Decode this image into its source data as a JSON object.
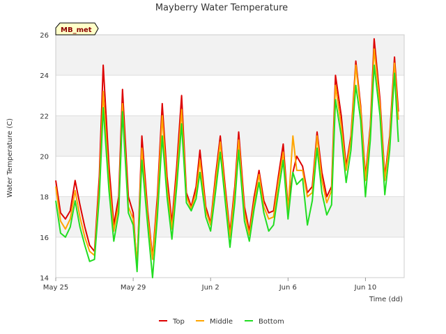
{
  "chart_data": {
    "type": "line",
    "title": "Mayberry Water Temperature",
    "xlabel": "Time (dd)",
    "ylabel": "Water Temperature (C)",
    "badge": "MB_met",
    "ylim": [
      14,
      26
    ],
    "xlim": [
      "2000-05-25",
      "2000-06-12"
    ],
    "yticks": [
      "14",
      "16",
      "18",
      "20",
      "22",
      "24",
      "26"
    ],
    "xticks": [
      {
        "label": "May 25",
        "day": 0
      },
      {
        "label": "May 29",
        "day": 4
      },
      {
        "label": "Jun 2",
        "day": 8
      },
      {
        "label": "Jun 6",
        "day": 12
      },
      {
        "label": "Jun 10",
        "day": 16
      }
    ],
    "grid": true,
    "legend_position": "bottom",
    "series": [
      {
        "name": "Top",
        "color": "#dd0000",
        "points": [
          [
            0.0,
            18.8
          ],
          [
            0.25,
            17.2
          ],
          [
            0.5,
            16.9
          ],
          [
            0.75,
            17.3
          ],
          [
            1.0,
            18.8
          ],
          [
            1.25,
            17.6
          ],
          [
            1.5,
            16.5
          ],
          [
            1.75,
            15.6
          ],
          [
            2.0,
            15.3
          ],
          [
            2.25,
            19.0
          ],
          [
            2.45,
            24.5
          ],
          [
            2.75,
            19.5
          ],
          [
            3.0,
            16.6
          ],
          [
            3.25,
            18.0
          ],
          [
            3.45,
            23.3
          ],
          [
            3.75,
            18.0
          ],
          [
            4.0,
            17.2
          ],
          [
            4.2,
            14.5
          ],
          [
            4.45,
            21.0
          ],
          [
            4.75,
            17.3
          ],
          [
            5.0,
            15.0
          ],
          [
            5.25,
            18.0
          ],
          [
            5.5,
            22.6
          ],
          [
            5.75,
            19.0
          ],
          [
            6.0,
            16.7
          ],
          [
            6.25,
            19.5
          ],
          [
            6.5,
            23.0
          ],
          [
            6.75,
            18.2
          ],
          [
            7.0,
            17.5
          ],
          [
            7.25,
            18.5
          ],
          [
            7.45,
            20.3
          ],
          [
            7.75,
            17.5
          ],
          [
            8.0,
            16.7
          ],
          [
            8.25,
            19.0
          ],
          [
            8.5,
            21.0
          ],
          [
            8.75,
            18.5
          ],
          [
            9.0,
            16.2
          ],
          [
            9.25,
            18.5
          ],
          [
            9.45,
            21.2
          ],
          [
            9.75,
            17.5
          ],
          [
            10.0,
            16.3
          ],
          [
            10.25,
            18.0
          ],
          [
            10.5,
            19.3
          ],
          [
            10.75,
            17.8
          ],
          [
            11.0,
            17.2
          ],
          [
            11.25,
            17.3
          ],
          [
            11.5,
            19.0
          ],
          [
            11.75,
            20.6
          ],
          [
            12.0,
            17.5
          ],
          [
            12.25,
            19.2
          ],
          [
            12.45,
            20.0
          ],
          [
            12.75,
            19.5
          ],
          [
            13.0,
            18.2
          ],
          [
            13.25,
            18.5
          ],
          [
            13.5,
            21.2
          ],
          [
            13.75,
            19.2
          ],
          [
            14.0,
            18.0
          ],
          [
            14.25,
            18.5
          ],
          [
            14.45,
            24.0
          ],
          [
            14.75,
            22.0
          ],
          [
            15.0,
            19.5
          ],
          [
            15.25,
            21.0
          ],
          [
            15.5,
            24.7
          ],
          [
            15.75,
            22.5
          ],
          [
            16.0,
            19.0
          ],
          [
            16.25,
            21.5
          ],
          [
            16.45,
            25.8
          ],
          [
            16.75,
            22.8
          ],
          [
            17.0,
            19.0
          ],
          [
            17.25,
            21.0
          ],
          [
            17.5,
            24.9
          ],
          [
            17.7,
            22.2
          ]
        ]
      },
      {
        "name": "Middle",
        "color": "#ffa500",
        "points": [
          [
            0.0,
            18.5
          ],
          [
            0.25,
            16.8
          ],
          [
            0.5,
            16.4
          ],
          [
            0.75,
            16.9
          ],
          [
            1.0,
            18.3
          ],
          [
            1.25,
            17.0
          ],
          [
            1.5,
            16.0
          ],
          [
            1.75,
            15.3
          ],
          [
            2.0,
            15.1
          ],
          [
            2.25,
            18.5
          ],
          [
            2.45,
            23.2
          ],
          [
            2.75,
            18.8
          ],
          [
            3.0,
            16.3
          ],
          [
            3.25,
            17.6
          ],
          [
            3.45,
            22.6
          ],
          [
            3.75,
            17.5
          ],
          [
            4.0,
            16.9
          ],
          [
            4.2,
            14.7
          ],
          [
            4.45,
            20.4
          ],
          [
            4.75,
            17.0
          ],
          [
            5.0,
            14.9
          ],
          [
            5.25,
            17.6
          ],
          [
            5.5,
            22.0
          ],
          [
            5.75,
            18.5
          ],
          [
            6.0,
            16.4
          ],
          [
            6.25,
            19.0
          ],
          [
            6.5,
            22.3
          ],
          [
            6.75,
            18.0
          ],
          [
            7.0,
            17.4
          ],
          [
            7.25,
            18.2
          ],
          [
            7.45,
            19.8
          ],
          [
            7.75,
            17.3
          ],
          [
            8.0,
            16.6
          ],
          [
            8.25,
            18.7
          ],
          [
            8.5,
            20.7
          ],
          [
            8.75,
            18.2
          ],
          [
            9.0,
            16.0
          ],
          [
            9.25,
            18.2
          ],
          [
            9.45,
            20.8
          ],
          [
            9.75,
            17.2
          ],
          [
            10.0,
            16.1
          ],
          [
            10.25,
            17.7
          ],
          [
            10.5,
            19.1
          ],
          [
            10.75,
            17.5
          ],
          [
            11.0,
            16.9
          ],
          [
            11.25,
            17.0
          ],
          [
            11.5,
            18.7
          ],
          [
            11.75,
            20.2
          ],
          [
            12.0,
            17.3
          ],
          [
            12.25,
            21.0
          ],
          [
            12.45,
            19.3
          ],
          [
            12.75,
            19.3
          ],
          [
            13.0,
            18.0
          ],
          [
            13.25,
            18.2
          ],
          [
            13.5,
            21.0
          ],
          [
            13.75,
            18.8
          ],
          [
            14.0,
            17.7
          ],
          [
            14.25,
            18.3
          ],
          [
            14.45,
            23.5
          ],
          [
            14.75,
            21.5
          ],
          [
            15.0,
            19.3
          ],
          [
            15.25,
            20.8
          ],
          [
            15.5,
            24.5
          ],
          [
            15.75,
            22.3
          ],
          [
            16.0,
            18.8
          ],
          [
            16.25,
            21.3
          ],
          [
            16.45,
            25.3
          ],
          [
            16.75,
            22.5
          ],
          [
            17.0,
            18.8
          ],
          [
            17.25,
            20.8
          ],
          [
            17.5,
            24.6
          ],
          [
            17.7,
            21.8
          ]
        ]
      },
      {
        "name": "Bottom",
        "color": "#22dd22",
        "points": [
          [
            0.0,
            17.8
          ],
          [
            0.25,
            16.2
          ],
          [
            0.5,
            16.0
          ],
          [
            0.75,
            16.5
          ],
          [
            1.0,
            17.8
          ],
          [
            1.25,
            16.5
          ],
          [
            1.5,
            15.6
          ],
          [
            1.75,
            14.8
          ],
          [
            2.0,
            14.9
          ],
          [
            2.25,
            18.0
          ],
          [
            2.45,
            22.4
          ],
          [
            2.75,
            18.3
          ],
          [
            3.0,
            15.8
          ],
          [
            3.25,
            17.2
          ],
          [
            3.45,
            22.2
          ],
          [
            3.75,
            17.2
          ],
          [
            4.0,
            16.6
          ],
          [
            4.2,
            14.3
          ],
          [
            4.45,
            19.8
          ],
          [
            4.75,
            16.6
          ],
          [
            5.0,
            14.0
          ],
          [
            5.25,
            17.0
          ],
          [
            5.5,
            21.0
          ],
          [
            5.75,
            18.0
          ],
          [
            6.0,
            15.9
          ],
          [
            6.25,
            18.5
          ],
          [
            6.5,
            21.6
          ],
          [
            6.75,
            17.7
          ],
          [
            7.0,
            17.3
          ],
          [
            7.25,
            17.9
          ],
          [
            7.45,
            19.2
          ],
          [
            7.75,
            17.0
          ],
          [
            8.0,
            16.3
          ],
          [
            8.25,
            18.2
          ],
          [
            8.5,
            20.2
          ],
          [
            8.75,
            17.8
          ],
          [
            9.0,
            15.5
          ],
          [
            9.25,
            17.7
          ],
          [
            9.45,
            20.3
          ],
          [
            9.75,
            16.8
          ],
          [
            10.0,
            15.8
          ],
          [
            10.25,
            17.4
          ],
          [
            10.5,
            18.7
          ],
          [
            10.75,
            17.2
          ],
          [
            11.0,
            16.3
          ],
          [
            11.25,
            16.6
          ],
          [
            11.5,
            18.2
          ],
          [
            11.75,
            19.8
          ],
          [
            12.0,
            16.9
          ],
          [
            12.25,
            19.2
          ],
          [
            12.45,
            18.6
          ],
          [
            12.75,
            18.9
          ],
          [
            13.0,
            16.6
          ],
          [
            13.25,
            17.8
          ],
          [
            13.5,
            20.4
          ],
          [
            13.75,
            18.2
          ],
          [
            14.0,
            17.1
          ],
          [
            14.25,
            17.6
          ],
          [
            14.45,
            22.8
          ],
          [
            14.75,
            21.0
          ],
          [
            15.0,
            18.7
          ],
          [
            15.25,
            20.3
          ],
          [
            15.5,
            23.5
          ],
          [
            15.75,
            21.8
          ],
          [
            16.0,
            18.0
          ],
          [
            16.25,
            20.8
          ],
          [
            16.45,
            24.5
          ],
          [
            16.75,
            22.0
          ],
          [
            17.0,
            18.1
          ],
          [
            17.25,
            20.3
          ],
          [
            17.5,
            24.1
          ],
          [
            17.7,
            20.7
          ]
        ]
      }
    ]
  }
}
